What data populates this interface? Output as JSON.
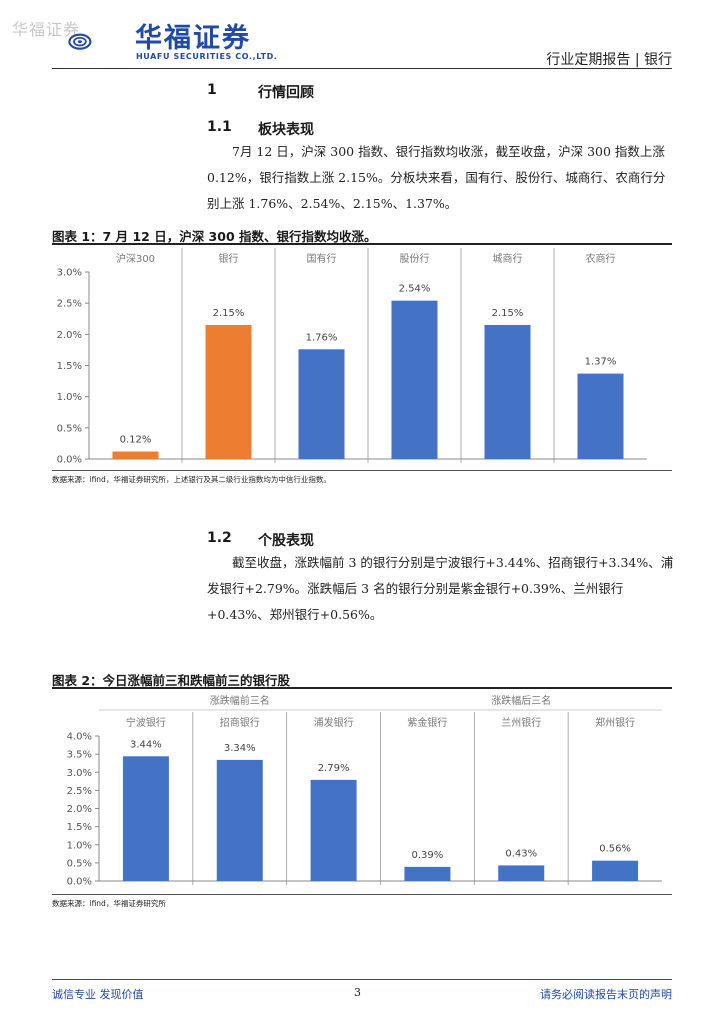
{
  "header": {
    "watermark": "华福证券",
    "logo_cn": "华福证券",
    "logo_en": "HUAFU SECURITIES CO.,LTD.",
    "report_type": "行业定期报告 | 银行"
  },
  "section1": {
    "num": "1",
    "title": "行情回顾",
    "sub1_num": "1.1",
    "sub1_title": "板块表现",
    "sub1_text": "7月 12 日，沪深 300 指数、银行指数均收涨，截至收盘，沪深 300 指数上涨 0.12%，银行指数上涨 2.15%。分板块来看，国有行、股份行、城商行、农商行分别上涨 1.76%、2.54%、2.15%、1.37%。"
  },
  "figure1": {
    "title": "图表 1：7 月 12 日，沪深 300 指数、银行指数均收涨。",
    "source": "数据来源：ifind，华福证券研究所，上述银行及其二级行业指数均为中信行业指数。"
  },
  "section2": {
    "sub2_num": "1.2",
    "sub2_title": "个股表现",
    "sub2_text": "截至收盘，涨跌幅前 3 的银行分别是宁波银行+3.44%、招商银行+3.34%、浦发银行+2.79%。涨跌幅后 3 名的银行分别是紫金银行+0.39%、兰州银行+0.43%、郑州银行+0.56%。"
  },
  "figure2": {
    "title": "图表 2：今日涨幅前三和跌幅前三的银行股",
    "source": "数据来源：ifind，华福证券研究所"
  },
  "footer": {
    "left": "诚信专业  发现价值",
    "page": "3",
    "right": "请务必阅读报告末页的声明"
  },
  "chart_data": [
    {
      "type": "bar",
      "categories": [
        "沪深300",
        "银行",
        "国有行",
        "股份行",
        "城商行",
        "农商行"
      ],
      "values": [
        0.12,
        2.15,
        1.76,
        2.54,
        2.15,
        1.37
      ],
      "value_labels": [
        "0.12%",
        "2.15%",
        "1.76%",
        "2.54%",
        "2.15%",
        "1.37%"
      ],
      "colors": [
        "#ed7d31",
        "#ed7d31",
        "#4472c4",
        "#4472c4",
        "#4472c4",
        "#4472c4"
      ],
      "ylim": [
        0,
        3.0
      ],
      "yticks": [
        "0.0%",
        "0.5%",
        "1.0%",
        "1.5%",
        "2.0%",
        "2.5%",
        "3.0%"
      ],
      "category_position": "top",
      "grid": false
    },
    {
      "type": "bar",
      "groups": [
        "涨跌幅前三名",
        "涨跌幅后三名"
      ],
      "categories": [
        "宁波银行",
        "招商银行",
        "浦发银行",
        "紫金银行",
        "兰州银行",
        "郑州银行"
      ],
      "values": [
        3.44,
        3.34,
        2.79,
        0.39,
        0.43,
        0.56
      ],
      "value_labels": [
        "3.44%",
        "3.34%",
        "2.79%",
        "0.39%",
        "0.43%",
        "0.56%"
      ],
      "colors": [
        "#4472c4"
      ],
      "ylim": [
        0,
        4.0
      ],
      "yticks": [
        "0.0%",
        "0.5%",
        "1.0%",
        "1.5%",
        "2.0%",
        "2.5%",
        "3.0%",
        "3.5%",
        "4.0%"
      ],
      "category_position": "top",
      "grid": false
    }
  ]
}
